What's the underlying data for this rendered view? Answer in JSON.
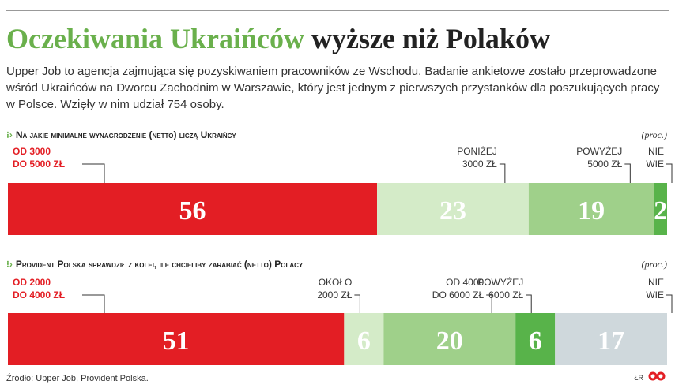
{
  "title_green": "Oczekiwania Ukraińców",
  "title_dark": "wyższe niż Polaków",
  "intro": "Upper Job to agencja zajmująca się pozyskiwaniem pracowników ze Wschodu. Badanie ankietowe zostało przeprowadzone wśród Ukraińców na Dworcu Zachodnim w Warszawie, który jest jednym z pierwszych przystanków dla poszukujących pracy w Polsce. Wzięły w nim udział 754 osoby.",
  "chart_data": [
    {
      "type": "bar",
      "title": "Na jakie minimalne wynagrodzenie (netto) liczą Ukraińcy",
      "unit": "(proc.)",
      "segments": [
        {
          "label": [
            "OD 3000",
            "DO 5000 ZŁ"
          ],
          "value": 56,
          "color": "#e31e24",
          "label_color": "#e31e24",
          "value_color": "#ffffff"
        },
        {
          "label": [
            "PONIŻEJ",
            "3000 ZŁ"
          ],
          "value": 23,
          "color": "#d4ebc8",
          "label_color": "#333333",
          "value_color": "#ffffff"
        },
        {
          "label": [
            "POWYŻEJ",
            "5000 ZŁ"
          ],
          "value": 19,
          "color": "#9fd08a",
          "label_color": "#333333",
          "value_color": "#ffffff"
        },
        {
          "label": [
            "NIE",
            "WIE"
          ],
          "value": 2,
          "color": "#58b34a",
          "label_color": "#333333",
          "value_color": "#ffffff"
        }
      ]
    },
    {
      "type": "bar",
      "title": "Provident  Polska sprawdził z kolei, ile chcieliby zarabiać (netto) Polacy",
      "unit": "(proc.)",
      "segments": [
        {
          "label": [
            "OD 2000",
            "DO 4000 ZŁ"
          ],
          "value": 51,
          "color": "#e31e24",
          "label_color": "#e31e24",
          "value_color": "#ffffff"
        },
        {
          "label": [
            "OKOŁO",
            "2000 ZŁ"
          ],
          "value": 6,
          "color": "#d4ebc8",
          "label_color": "#333333",
          "value_color": "#ffffff"
        },
        {
          "label": [
            "OD 4000",
            "DO 6000 ZŁ"
          ],
          "value": 20,
          "color": "#9fd08a",
          "label_color": "#333333",
          "value_color": "#ffffff"
        },
        {
          "label": [
            "POWYŻEJ",
            "6000 ZŁ"
          ],
          "value": 6,
          "color": "#58b34a",
          "label_color": "#333333",
          "value_color": "#ffffff"
        },
        {
          "label": [
            "NIE",
            "WIE"
          ],
          "value": 17,
          "color": "#cfd8dc",
          "label_color": "#333333",
          "value_color": "#ffffff"
        }
      ]
    }
  ],
  "source": "Źródło: Upper Job, Provident Polska.",
  "credit": "ŁR"
}
